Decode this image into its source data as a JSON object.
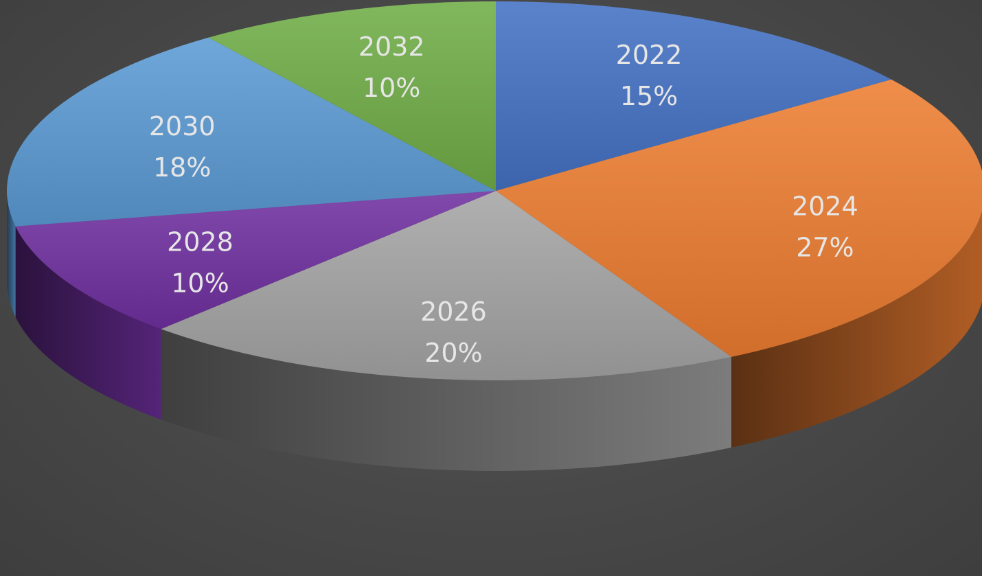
{
  "chart_data": {
    "type": "pie",
    "title": "",
    "three_d": true,
    "legend": "none",
    "slices": [
      {
        "label": "2022",
        "value": 15,
        "value_label": "15%",
        "color": "#4472C4"
      },
      {
        "label": "2024",
        "value": 27,
        "value_label": "27%",
        "color": "#ED7D31"
      },
      {
        "label": "2026",
        "value": 20,
        "value_label": "20%",
        "color": "#A5A5A5"
      },
      {
        "label": "2028",
        "value": 10,
        "value_label": "10%",
        "color": "#7030A0"
      },
      {
        "label": "2030",
        "value": 18,
        "value_label": "18%",
        "color": "#5B9BD5"
      },
      {
        "label": "2032",
        "value": 10,
        "value_label": "10%",
        "color": "#70AD47"
      }
    ]
  }
}
